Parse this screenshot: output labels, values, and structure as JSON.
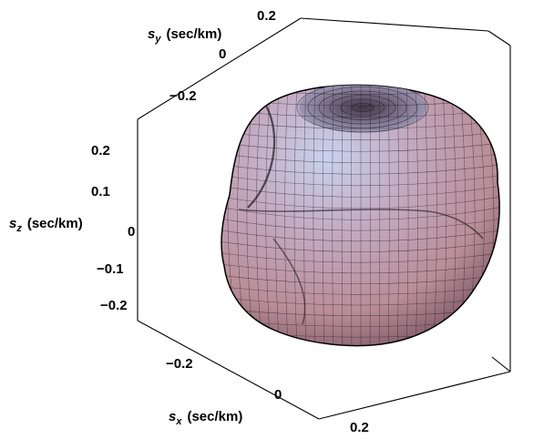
{
  "plot": {
    "x_axis": {
      "variable": "s",
      "subscript": "x",
      "unit": "(sec/km)",
      "ticks": [
        "−0.2",
        "0",
        "0.2"
      ]
    },
    "y_axis": {
      "variable": "s",
      "subscript": "y",
      "unit": "(sec/km)",
      "ticks": [
        "−0.2",
        "0",
        "0.2"
      ]
    },
    "z_axis": {
      "variable": "s",
      "subscript": "z",
      "unit": "(sec/km)",
      "ticks": [
        "0.2",
        "0.1",
        "0",
        "−0.1",
        "−0.2"
      ]
    },
    "surface": {
      "colors": {
        "light": "#bcc6e3",
        "mid": "#c69aa6",
        "dark": "#5a3b4c",
        "mesh": "#1a1218"
      }
    }
  }
}
